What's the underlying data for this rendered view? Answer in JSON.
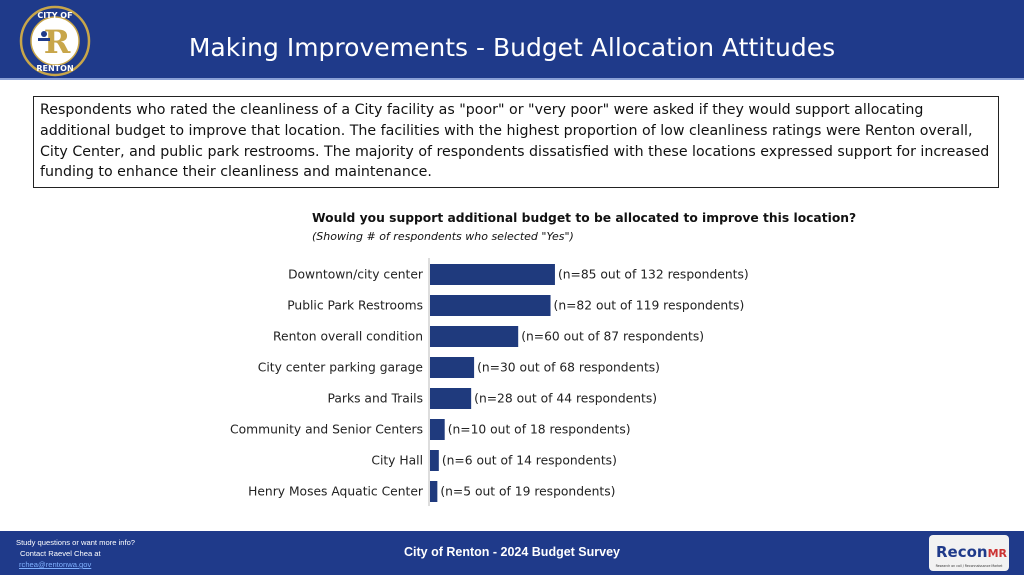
{
  "header": {
    "title": "Making Improvements - Budget Allocation Attitudes",
    "logo_top_text": "CITY OF",
    "logo_bottom_text": "RENTON",
    "logo_letter": "R"
  },
  "intro": {
    "text": "Respondents who rated the cleanliness of a City facility as \"poor\" or \"very poor\" were asked if they would support allocating additional budget to improve that location. The facilities with the highest proportion of low cleanliness ratings were Renton overall, City Center, and public park restrooms. The majority of respondents dissatisfied with these locations expressed support for increased funding to enhance their cleanliness and maintenance."
  },
  "chart_data": {
    "type": "bar",
    "orientation": "horizontal",
    "title": "Would you support additional budget to be allocated to improve this location?",
    "subtitle": "(Showing # of respondents who selected \"Yes\")",
    "categories": [
      "Downtown/city center",
      "Public Park Restrooms",
      "Renton overall condition",
      "City center parking garage",
      "Parks and Trails",
      "Community and Senior Centers",
      "City Hall",
      "Henry Moses Aquatic Center"
    ],
    "values": [
      85,
      82,
      60,
      30,
      28,
      10,
      6,
      5
    ],
    "totals": [
      132,
      119,
      87,
      68,
      44,
      18,
      14,
      19
    ],
    "label_prefix": "(n=",
    "label_middle": " out of",
    "label_suffix": "respondents)",
    "bar_color": "#1f3a7d"
  },
  "footer": {
    "contact_line1": "Study questions or want more info?",
    "contact_line2": "Contact Raevel Chea at",
    "contact_email": "rchea@rentonwa.gov",
    "center_text": "City of Renton - 2024 Budget Survey",
    "brand_name": "Recon",
    "brand_suffix": "MR",
    "brand_tagline": "Research on call / Reconnaissance Market"
  }
}
